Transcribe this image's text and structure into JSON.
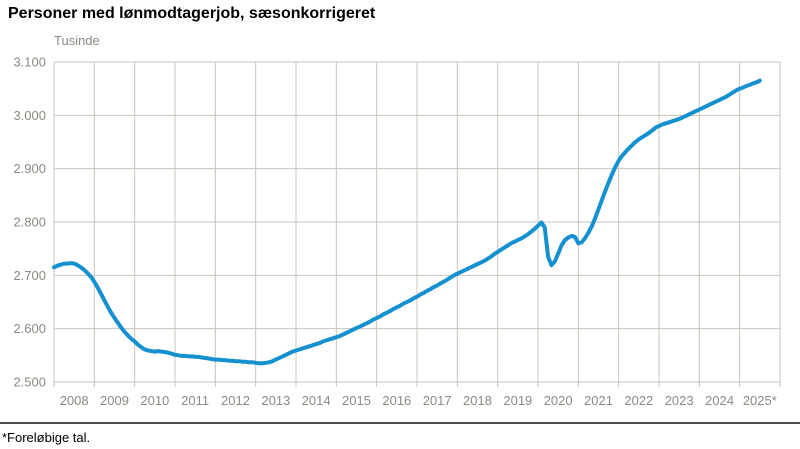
{
  "page": {
    "title": "Personer med lønmodtagerjob, sæsonkorrigeret",
    "unit_label": "Tusinde",
    "footnote": "*Foreløbige tal."
  },
  "colors": {
    "line": "#1590d0",
    "grid": "#c8c5bc",
    "axis_text": "#8b8a80",
    "title_text": "#000000",
    "separator": "#4c4c4e",
    "background": "#ffffff"
  },
  "chart_data": {
    "type": "line",
    "title": "Personer med lønmodtagerjob, sæsonkorrigeret",
    "unit_label": "Tusinde",
    "footnote": "*Foreløbige tal.",
    "ylabel": "Tusinde",
    "ylim": [
      2500,
      3100
    ],
    "ytick_interval": 100,
    "ytick_labels": [
      "3.100",
      "3.000",
      "2.900",
      "2.800",
      "2.700",
      "2.600",
      "2.500"
    ],
    "xtick_labels": [
      "2008",
      "2009",
      "2010",
      "2011",
      "2012",
      "2013",
      "2014",
      "2015",
      "2016",
      "2017",
      "2018",
      "2019",
      "2020",
      "2021",
      "2022",
      "2023",
      "2024",
      "2025*"
    ],
    "x_start": "2008-01",
    "x_end": "2025-07",
    "grid": true,
    "legend_position": "none",
    "line_color": "#1590d0",
    "series": [
      {
        "name": "Personer med lønmodtagerjob, sæsonkorrigeret (tusinde)",
        "frequency": "monthly",
        "monthly_values_thousands": [
          2715,
          2718,
          2720,
          2722,
          2722,
          2723,
          2722,
          2719,
          2715,
          2710,
          2704,
          2697,
          2688,
          2677,
          2665,
          2653,
          2641,
          2630,
          2620,
          2611,
          2602,
          2594,
          2587,
          2581,
          2576,
          2570,
          2565,
          2561,
          2559,
          2558,
          2557,
          2558,
          2557,
          2556,
          2555,
          2553,
          2551,
          2550,
          2549,
          2549,
          2548,
          2548,
          2547,
          2547,
          2546,
          2545,
          2544,
          2543,
          2542,
          2542,
          2541,
          2541,
          2540,
          2540,
          2539,
          2539,
          2538,
          2538,
          2537,
          2537,
          2536,
          2535,
          2535,
          2536,
          2537,
          2539,
          2542,
          2545,
          2548,
          2551,
          2554,
          2557,
          2559,
          2561,
          2563,
          2565,
          2567,
          2569,
          2571,
          2573,
          2576,
          2578,
          2580,
          2582,
          2584,
          2586,
          2589,
          2592,
          2595,
          2598,
          2601,
          2604,
          2607,
          2610,
          2613,
          2617,
          2620,
          2623,
          2627,
          2630,
          2633,
          2637,
          2640,
          2643,
          2647,
          2650,
          2653,
          2657,
          2660,
          2664,
          2667,
          2671,
          2674,
          2678,
          2681,
          2685,
          2688,
          2692,
          2696,
          2700,
          2703,
          2706,
          2709,
          2712,
          2715,
          2718,
          2721,
          2724,
          2727,
          2731,
          2735,
          2740,
          2744,
          2748,
          2752,
          2756,
          2760,
          2763,
          2766,
          2769,
          2773,
          2777,
          2782,
          2787,
          2793,
          2799,
          2790,
          2735,
          2719,
          2726,
          2741,
          2756,
          2766,
          2771,
          2774,
          2772,
          2760,
          2762,
          2770,
          2780,
          2792,
          2807,
          2824,
          2841,
          2858,
          2874,
          2889,
          2903,
          2915,
          2924,
          2931,
          2938,
          2944,
          2950,
          2955,
          2959,
          2963,
          2967,
          2972,
          2977,
          2980,
          2983,
          2985,
          2987,
          2989,
          2991,
          2993,
          2996,
          2999,
          3002,
          3005,
          3008,
          3011,
          3014,
          3017,
          3020,
          3023,
          3026,
          3029,
          3032,
          3035,
          3039,
          3043,
          3047,
          3050,
          3052,
          3055,
          3057,
          3060,
          3062,
          3065
        ]
      }
    ]
  }
}
